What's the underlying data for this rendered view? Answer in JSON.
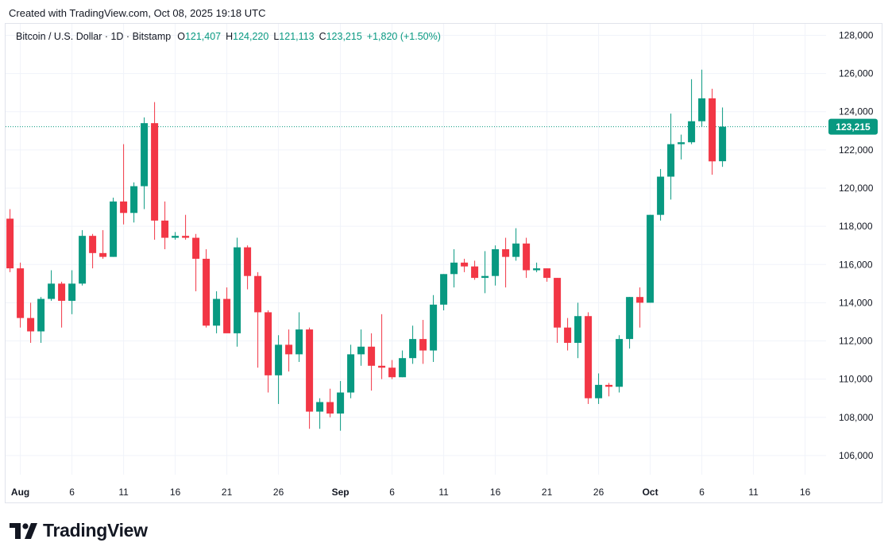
{
  "header": {
    "created_text": "Created with TradingView.com, Oct 08, 2025 19:18 UTC"
  },
  "legend": {
    "symbol": "Bitcoin / U.S. Dollar · 1D · Bitstamp",
    "o_label": "O",
    "o_value": "121,407",
    "h_label": "H",
    "h_value": "124,220",
    "l_label": "L",
    "l_value": "121,113",
    "c_label": "C",
    "c_value": "123,215",
    "change": "+1,820 (+1.50%)"
  },
  "last_price": {
    "value": 123215,
    "label": "123,215"
  },
  "footer": {
    "brand": "TradingView"
  },
  "colors": {
    "up": "#089981",
    "down": "#f23645",
    "grid": "#f0f3fa",
    "axis_text": "#131722"
  },
  "chart_data": {
    "type": "candlestick",
    "title": "Bitcoin / U.S. Dollar · 1D · Bitstamp",
    "y_axis": {
      "side": "right",
      "ticks": [
        106000,
        108000,
        110000,
        112000,
        114000,
        116000,
        118000,
        120000,
        122000,
        124000,
        126000,
        128000
      ],
      "tick_labels": [
        "106,000",
        "108,000",
        "110,000",
        "112,000",
        "114,000",
        "116,000",
        "118,000",
        "120,000",
        "122,000",
        "124,000",
        "126,000",
        "128,000"
      ],
      "range": [
        105000,
        128600
      ]
    },
    "x_axis": {
      "range": [
        "2025-07-31",
        "2025-10-20"
      ],
      "ticks": [
        {
          "date": "2025-08-01",
          "label": "Aug",
          "bold": true
        },
        {
          "date": "2025-08-06",
          "label": "6"
        },
        {
          "date": "2025-08-11",
          "label": "11"
        },
        {
          "date": "2025-08-16",
          "label": "16"
        },
        {
          "date": "2025-08-21",
          "label": "21"
        },
        {
          "date": "2025-08-26",
          "label": "26"
        },
        {
          "date": "2025-09-01",
          "label": "Sep",
          "bold": true
        },
        {
          "date": "2025-09-06",
          "label": "6"
        },
        {
          "date": "2025-09-11",
          "label": "11"
        },
        {
          "date": "2025-09-16",
          "label": "16"
        },
        {
          "date": "2025-09-21",
          "label": "21"
        },
        {
          "date": "2025-09-26",
          "label": "26"
        },
        {
          "date": "2025-10-01",
          "label": "Oct",
          "bold": true
        },
        {
          "date": "2025-10-06",
          "label": "6"
        },
        {
          "date": "2025-10-11",
          "label": "11"
        },
        {
          "date": "2025-10-16",
          "label": "16"
        }
      ]
    },
    "grid": true,
    "candles": [
      {
        "date": "2025-07-31",
        "o": 118400,
        "h": 118900,
        "l": 115600,
        "c": 115800
      },
      {
        "date": "2025-08-01",
        "o": 115800,
        "h": 116100,
        "l": 112700,
        "c": 113200
      },
      {
        "date": "2025-08-02",
        "o": 113200,
        "h": 114000,
        "l": 111900,
        "c": 112500
      },
      {
        "date": "2025-08-03",
        "o": 112500,
        "h": 114300,
        "l": 111900,
        "c": 114200
      },
      {
        "date": "2025-08-04",
        "o": 114200,
        "h": 115700,
        "l": 114100,
        "c": 115000
      },
      {
        "date": "2025-08-05",
        "o": 115000,
        "h": 115100,
        "l": 112700,
        "c": 114100
      },
      {
        "date": "2025-08-06",
        "o": 114100,
        "h": 115700,
        "l": 113400,
        "c": 115000
      },
      {
        "date": "2025-08-07",
        "o": 115000,
        "h": 117800,
        "l": 114900,
        "c": 117500
      },
      {
        "date": "2025-08-08",
        "o": 117500,
        "h": 117600,
        "l": 115800,
        "c": 116600
      },
      {
        "date": "2025-08-09",
        "o": 116600,
        "h": 117800,
        "l": 116300,
        "c": 116400
      },
      {
        "date": "2025-08-10",
        "o": 116400,
        "h": 119500,
        "l": 116400,
        "c": 119300
      },
      {
        "date": "2025-08-11",
        "o": 119300,
        "h": 122300,
        "l": 118100,
        "c": 118700
      },
      {
        "date": "2025-08-12",
        "o": 118700,
        "h": 120300,
        "l": 118200,
        "c": 120100
      },
      {
        "date": "2025-08-13",
        "o": 120100,
        "h": 123700,
        "l": 118900,
        "c": 123400
      },
      {
        "date": "2025-08-14",
        "o": 123400,
        "h": 124500,
        "l": 117300,
        "c": 118300
      },
      {
        "date": "2025-08-15",
        "o": 118300,
        "h": 119300,
        "l": 116800,
        "c": 117400
      },
      {
        "date": "2025-08-16",
        "o": 117400,
        "h": 117700,
        "l": 117300,
        "c": 117500
      },
      {
        "date": "2025-08-17",
        "o": 117500,
        "h": 118600,
        "l": 117300,
        "c": 117400
      },
      {
        "date": "2025-08-18",
        "o": 117400,
        "h": 117600,
        "l": 114600,
        "c": 116300
      },
      {
        "date": "2025-08-19",
        "o": 116300,
        "h": 116800,
        "l": 112700,
        "c": 112800
      },
      {
        "date": "2025-08-20",
        "o": 112800,
        "h": 114600,
        "l": 112400,
        "c": 114200
      },
      {
        "date": "2025-08-21",
        "o": 114200,
        "h": 114800,
        "l": 112500,
        "c": 112400
      },
      {
        "date": "2025-08-22",
        "o": 112400,
        "h": 117400,
        "l": 111700,
        "c": 116900
      },
      {
        "date": "2025-08-23",
        "o": 116900,
        "h": 117000,
        "l": 114700,
        "c": 115400
      },
      {
        "date": "2025-08-24",
        "o": 115400,
        "h": 115600,
        "l": 110600,
        "c": 113500
      },
      {
        "date": "2025-08-25",
        "o": 113500,
        "h": 113600,
        "l": 109300,
        "c": 110200
      },
      {
        "date": "2025-08-26",
        "o": 110200,
        "h": 112300,
        "l": 108700,
        "c": 111800
      },
      {
        "date": "2025-08-27",
        "o": 111800,
        "h": 112600,
        "l": 110400,
        "c": 111300
      },
      {
        "date": "2025-08-28",
        "o": 111300,
        "h": 113500,
        "l": 110900,
        "c": 112600
      },
      {
        "date": "2025-08-29",
        "o": 112600,
        "h": 112700,
        "l": 107400,
        "c": 108300
      },
      {
        "date": "2025-08-30",
        "o": 108300,
        "h": 109000,
        "l": 107400,
        "c": 108800
      },
      {
        "date": "2025-08-31",
        "o": 108800,
        "h": 109500,
        "l": 108000,
        "c": 108200
      },
      {
        "date": "2025-09-01",
        "o": 108200,
        "h": 109900,
        "l": 107300,
        "c": 109300
      },
      {
        "date": "2025-09-02",
        "o": 109300,
        "h": 111800,
        "l": 109000,
        "c": 111300
      },
      {
        "date": "2025-09-03",
        "o": 111300,
        "h": 112600,
        "l": 110700,
        "c": 111700
      },
      {
        "date": "2025-09-04",
        "o": 111700,
        "h": 112400,
        "l": 109400,
        "c": 110700
      },
      {
        "date": "2025-09-05",
        "o": 110700,
        "h": 113400,
        "l": 110000,
        "c": 110600
      },
      {
        "date": "2025-09-06",
        "o": 110600,
        "h": 111000,
        "l": 110000,
        "c": 110100
      },
      {
        "date": "2025-09-07",
        "o": 110100,
        "h": 111500,
        "l": 110100,
        "c": 111100
      },
      {
        "date": "2025-09-08",
        "o": 111100,
        "h": 112800,
        "l": 110800,
        "c": 112100
      },
      {
        "date": "2025-09-09",
        "o": 112100,
        "h": 113100,
        "l": 110800,
        "c": 111500
      },
      {
        "date": "2025-09-10",
        "o": 111500,
        "h": 114400,
        "l": 110900,
        "c": 113900
      },
      {
        "date": "2025-09-11",
        "o": 113900,
        "h": 115500,
        "l": 113600,
        "c": 115500
      },
      {
        "date": "2025-09-12",
        "o": 115500,
        "h": 116800,
        "l": 114800,
        "c": 116100
      },
      {
        "date": "2025-09-13",
        "o": 116100,
        "h": 116300,
        "l": 115600,
        "c": 115900
      },
      {
        "date": "2025-09-14",
        "o": 115900,
        "h": 116200,
        "l": 115200,
        "c": 115300
      },
      {
        "date": "2025-09-15",
        "o": 115300,
        "h": 116700,
        "l": 114500,
        "c": 115400
      },
      {
        "date": "2025-09-16",
        "o": 115400,
        "h": 117000,
        "l": 114900,
        "c": 116800
      },
      {
        "date": "2025-09-17",
        "o": 116800,
        "h": 117400,
        "l": 114800,
        "c": 116400
      },
      {
        "date": "2025-09-18",
        "o": 116400,
        "h": 117900,
        "l": 116200,
        "c": 117100
      },
      {
        "date": "2025-09-19",
        "o": 117100,
        "h": 117400,
        "l": 115300,
        "c": 115700
      },
      {
        "date": "2025-09-20",
        "o": 115700,
        "h": 116100,
        "l": 115600,
        "c": 115800
      },
      {
        "date": "2025-09-21",
        "o": 115800,
        "h": 115800,
        "l": 115100,
        "c": 115300
      },
      {
        "date": "2025-09-22",
        "o": 115300,
        "h": 115300,
        "l": 111900,
        "c": 112700
      },
      {
        "date": "2025-09-23",
        "o": 112700,
        "h": 113200,
        "l": 111500,
        "c": 111900
      },
      {
        "date": "2025-09-24",
        "o": 111900,
        "h": 114000,
        "l": 111100,
        "c": 113300
      },
      {
        "date": "2025-09-25",
        "o": 113300,
        "h": 113500,
        "l": 108700,
        "c": 109000
      },
      {
        "date": "2025-09-26",
        "o": 109000,
        "h": 110300,
        "l": 108700,
        "c": 109700
      },
      {
        "date": "2025-09-27",
        "o": 109700,
        "h": 109800,
        "l": 109100,
        "c": 109600
      },
      {
        "date": "2025-09-28",
        "o": 109600,
        "h": 112300,
        "l": 109300,
        "c": 112100
      },
      {
        "date": "2025-09-29",
        "o": 112100,
        "h": 114300,
        "l": 111600,
        "c": 114300
      },
      {
        "date": "2025-09-30",
        "o": 114300,
        "h": 114800,
        "l": 112700,
        "c": 114000
      },
      {
        "date": "2025-10-01",
        "o": 114000,
        "h": 118600,
        "l": 114000,
        "c": 118600
      },
      {
        "date": "2025-10-02",
        "o": 118600,
        "h": 121000,
        "l": 118300,
        "c": 120600
      },
      {
        "date": "2025-10-03",
        "o": 120600,
        "h": 123900,
        "l": 119400,
        "c": 122300
      },
      {
        "date": "2025-10-04",
        "o": 122300,
        "h": 122800,
        "l": 121500,
        "c": 122400
      },
      {
        "date": "2025-10-05",
        "o": 122400,
        "h": 125700,
        "l": 122300,
        "c": 123500
      },
      {
        "date": "2025-10-06",
        "o": 123500,
        "h": 126200,
        "l": 123200,
        "c": 124700
      },
      {
        "date": "2025-10-07",
        "o": 124700,
        "h": 125200,
        "l": 120700,
        "c": 121400
      },
      {
        "date": "2025-10-08",
        "o": 121407,
        "h": 124220,
        "l": 121113,
        "c": 123215
      }
    ]
  }
}
